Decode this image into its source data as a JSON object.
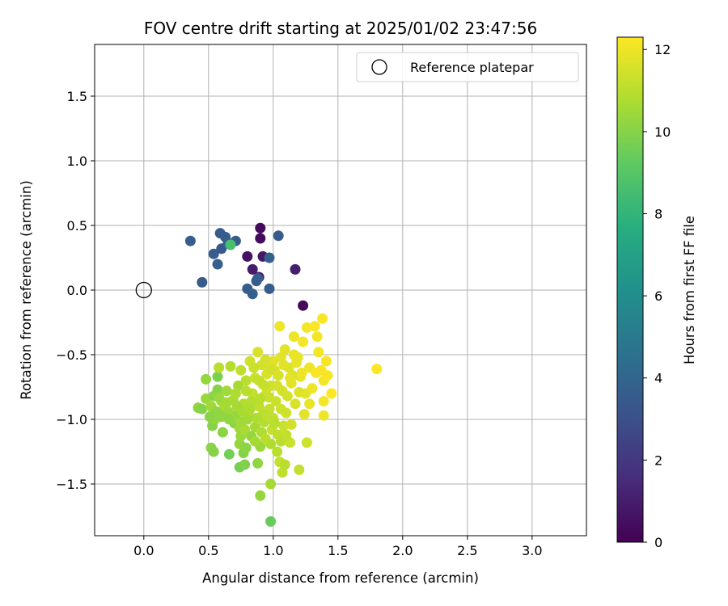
{
  "chart_data": {
    "type": "scatter",
    "title": "FOV centre drift starting at 2025/01/02 23:47:56",
    "xlabel": "Angular distance from reference (arcmin)",
    "ylabel": "Rotation from reference (arcmin)",
    "xlim": [
      -0.38,
      3.42
    ],
    "ylim": [
      -1.9,
      1.9
    ],
    "xticks": [
      0.0,
      0.5,
      1.0,
      1.5,
      2.0,
      2.5,
      3.0
    ],
    "xtick_labels": [
      "0.0",
      "0.5",
      "1.0",
      "1.5",
      "2.0",
      "2.5",
      "3.0"
    ],
    "yticks": [
      -1.5,
      -1.0,
      -0.5,
      0.0,
      0.5,
      1.0,
      1.5
    ],
    "ytick_labels": [
      "−1.5",
      "−1.0",
      "−0.5",
      "0.0",
      "0.5",
      "1.0",
      "1.5"
    ],
    "grid": true,
    "legend": {
      "placement": "upper-right",
      "entries": [
        "Reference platepar"
      ]
    },
    "reference_point": {
      "x": 0.0,
      "y": 0.0
    },
    "colorbar": {
      "label": "Hours from first FF file",
      "colormap": "viridis",
      "range": [
        0,
        12.3
      ],
      "ticks": [
        0,
        2,
        4,
        6,
        8,
        10,
        12
      ],
      "tick_labels": [
        "0",
        "2",
        "4",
        "6",
        "8",
        "10",
        "12"
      ]
    },
    "points": [
      [
        0.9,
        0.48,
        0.3
      ],
      [
        0.9,
        0.4,
        0.4
      ],
      [
        0.8,
        0.26,
        0.6
      ],
      [
        0.92,
        0.26,
        0.8
      ],
      [
        0.84,
        0.16,
        0.9
      ],
      [
        0.89,
        0.1,
        1.0
      ],
      [
        1.17,
        0.16,
        1.1
      ],
      [
        1.23,
        -0.12,
        0.2
      ],
      [
        0.36,
        0.38,
        3.6
      ],
      [
        0.45,
        0.06,
        3.5
      ],
      [
        0.54,
        0.28,
        3.6
      ],
      [
        0.57,
        0.2,
        3.7
      ],
      [
        0.59,
        0.44,
        3.5
      ],
      [
        0.63,
        0.41,
        3.6
      ],
      [
        0.6,
        0.32,
        3.4
      ],
      [
        0.66,
        0.36,
        3.8
      ],
      [
        0.71,
        0.38,
        3.5
      ],
      [
        0.65,
        0.36,
        3.9
      ],
      [
        0.87,
        0.07,
        3.6
      ],
      [
        0.88,
        0.09,
        3.7
      ],
      [
        0.97,
        0.25,
        3.8
      ],
      [
        1.04,
        0.42,
        3.6
      ],
      [
        0.8,
        0.01,
        3.6
      ],
      [
        0.84,
        -0.03,
        3.7
      ],
      [
        0.97,
        0.01,
        3.6
      ],
      [
        0.67,
        0.35,
        8.6
      ],
      [
        0.98,
        -1.79,
        9.4
      ],
      [
        0.9,
        -1.59,
        10.3
      ],
      [
        0.98,
        -1.5,
        10.6
      ],
      [
        0.66,
        -1.27,
        9.6
      ],
      [
        0.74,
        -1.37,
        9.7
      ],
      [
        0.78,
        -1.35,
        9.9
      ],
      [
        0.77,
        -1.26,
        10.0
      ],
      [
        0.88,
        -1.34,
        10.2
      ],
      [
        0.52,
        -1.22,
        10.1
      ],
      [
        0.54,
        -1.25,
        10.0
      ],
      [
        0.74,
        -1.19,
        10.3
      ],
      [
        0.79,
        -1.22,
        10.1
      ],
      [
        0.9,
        -1.21,
        10.4
      ],
      [
        0.98,
        -1.19,
        10.8
      ],
      [
        1.03,
        -1.25,
        11.0
      ],
      [
        1.07,
        -1.41,
        11.1
      ],
      [
        1.05,
        -1.33,
        11.2
      ],
      [
        1.09,
        -1.35,
        11.0
      ],
      [
        1.2,
        -1.39,
        11.2
      ],
      [
        1.06,
        -1.17,
        11.0
      ],
      [
        1.13,
        -1.18,
        11.3
      ],
      [
        1.26,
        -1.18,
        11.4
      ],
      [
        0.53,
        -1.05,
        10.0
      ],
      [
        0.55,
        -1.0,
        10.3
      ],
      [
        0.61,
        -1.1,
        10.1
      ],
      [
        0.7,
        -1.03,
        10.0
      ],
      [
        0.74,
        -1.07,
        10.5
      ],
      [
        0.75,
        -1.13,
        10.4
      ],
      [
        0.78,
        -1.08,
        10.7
      ],
      [
        0.83,
        -1.13,
        10.3
      ],
      [
        0.86,
        -1.06,
        10.6
      ],
      [
        0.91,
        -1.1,
        10.8
      ],
      [
        0.94,
        -1.15,
        11.0
      ],
      [
        0.99,
        -1.08,
        11.2
      ],
      [
        1.04,
        -1.12,
        11.1
      ],
      [
        1.08,
        -1.05,
        11.3
      ],
      [
        1.14,
        -1.04,
        11.5
      ],
      [
        0.42,
        -0.91,
        10.2
      ],
      [
        0.45,
        -0.92,
        10.0
      ],
      [
        0.48,
        -0.84,
        10.4
      ],
      [
        0.48,
        -0.69,
        10.3
      ],
      [
        0.52,
        -0.9,
        10.5
      ],
      [
        0.54,
        -0.82,
        10.1
      ],
      [
        0.57,
        -0.67,
        9.8
      ],
      [
        0.57,
        -0.77,
        10.0
      ],
      [
        0.58,
        -0.6,
        11.0
      ],
      [
        0.6,
        -0.86,
        10.6
      ],
      [
        0.62,
        -0.92,
        10.8
      ],
      [
        0.64,
        -0.78,
        10.5
      ],
      [
        0.67,
        -0.59,
        10.9
      ],
      [
        0.69,
        -0.85,
        10.7
      ],
      [
        0.71,
        -0.97,
        10.3
      ],
      [
        0.73,
        -0.74,
        10.6
      ],
      [
        0.75,
        -0.62,
        11.1
      ],
      [
        0.77,
        -0.88,
        10.9
      ],
      [
        0.79,
        -0.7,
        11.0
      ],
      [
        0.81,
        -0.95,
        11.1
      ],
      [
        0.82,
        -0.55,
        11.4
      ],
      [
        0.84,
        -0.8,
        11.2
      ],
      [
        0.86,
        -0.68,
        11.3
      ],
      [
        0.88,
        -0.48,
        11.6
      ],
      [
        0.89,
        -0.9,
        11.1
      ],
      [
        0.91,
        -0.58,
        11.5
      ],
      [
        0.93,
        -0.82,
        11.3
      ],
      [
        0.95,
        -0.65,
        11.6
      ],
      [
        0.97,
        -0.92,
        11.2
      ],
      [
        0.98,
        -0.74,
        11.4
      ],
      [
        1.0,
        -0.55,
        11.7
      ],
      [
        1.02,
        -0.86,
        11.3
      ],
      [
        1.04,
        -0.66,
        11.6
      ],
      [
        1.05,
        -0.28,
        12.0
      ],
      [
        1.07,
        -0.78,
        11.5
      ],
      [
        1.09,
        -0.46,
        11.8
      ],
      [
        1.1,
        -0.95,
        11.4
      ],
      [
        1.12,
        -0.6,
        11.7
      ],
      [
        1.14,
        -0.72,
        11.8
      ],
      [
        1.16,
        -0.36,
        12.0
      ],
      [
        1.17,
        -0.88,
        11.6
      ],
      [
        1.19,
        -0.52,
        11.9
      ],
      [
        1.21,
        -0.67,
        11.9
      ],
      [
        1.23,
        -0.4,
        12.1
      ],
      [
        1.25,
        -0.8,
        11.8
      ],
      [
        1.26,
        -0.29,
        12.1
      ],
      [
        1.28,
        -0.6,
        12.0
      ],
      [
        1.3,
        -0.76,
        12.0
      ],
      [
        1.32,
        -0.28,
        12.2
      ],
      [
        1.34,
        -0.36,
        12.1
      ],
      [
        1.35,
        -0.48,
        12.1
      ],
      [
        1.37,
        -0.62,
        12.2
      ],
      [
        1.38,
        -0.22,
        12.2
      ],
      [
        1.39,
        -0.7,
        12.1
      ],
      [
        1.41,
        -0.55,
        12.2
      ],
      [
        1.42,
        -0.66,
        12.2
      ],
      [
        1.45,
        -0.8,
        12.3
      ],
      [
        1.39,
        -0.86,
        12.1
      ],
      [
        1.39,
        -0.97,
        12.0
      ],
      [
        1.8,
        -0.61,
        12.3
      ],
      [
        1.28,
        -0.88,
        11.9
      ],
      [
        1.2,
        -0.79,
        11.7
      ],
      [
        1.15,
        -0.66,
        11.6
      ],
      [
        1.11,
        -0.82,
        11.5
      ],
      [
        1.06,
        -0.92,
        11.4
      ],
      [
        1.0,
        -0.99,
        11.2
      ],
      [
        0.95,
        -0.76,
        11.4
      ],
      [
        0.92,
        -0.96,
        11.0
      ],
      [
        0.87,
        -0.99,
        10.8
      ],
      [
        0.83,
        -0.86,
        10.9
      ],
      [
        0.8,
        -1.0,
        10.6
      ],
      [
        0.76,
        -0.94,
        10.7
      ],
      [
        0.72,
        -0.9,
        10.6
      ],
      [
        0.68,
        -1.0,
        10.4
      ],
      [
        0.65,
        -0.94,
        10.5
      ],
      [
        0.6,
        -0.98,
        10.2
      ],
      [
        0.56,
        -0.94,
        10.2
      ],
      [
        0.51,
        -0.98,
        10.1
      ],
      [
        0.89,
        -0.7,
        11.2
      ],
      [
        0.94,
        -0.54,
        11.5
      ],
      [
        1.01,
        -0.62,
        11.6
      ],
      [
        1.08,
        -0.58,
        11.8
      ],
      [
        1.13,
        -0.68,
        11.8
      ],
      [
        1.18,
        -0.56,
        11.9
      ],
      [
        1.22,
        -0.64,
        12.0
      ],
      [
        1.03,
        -0.74,
        11.5
      ],
      [
        0.97,
        -0.83,
        11.3
      ],
      [
        1.24,
        -0.96,
        11.8
      ],
      [
        0.86,
        -1.17,
        10.6
      ],
      [
        0.93,
        -1.02,
        10.9
      ],
      [
        1.01,
        -1.03,
        11.0
      ],
      [
        1.1,
        -1.12,
        11.2
      ],
      [
        0.66,
        -1.0,
        10.2
      ],
      [
        0.71,
        -0.8,
        10.8
      ],
      [
        0.79,
        -0.78,
        11.0
      ],
      [
        0.85,
        -0.6,
        11.3
      ],
      [
        0.92,
        -0.73,
        11.2
      ],
      [
        0.98,
        -0.61,
        11.5
      ],
      [
        1.06,
        -0.52,
        11.8
      ],
      [
        1.16,
        -0.5,
        11.9
      ],
      [
        1.33,
        -0.64,
        12.2
      ],
      [
        0.58,
        -0.83,
        10.4
      ],
      [
        0.64,
        -0.87,
        10.6
      ],
      [
        0.75,
        -1.02,
        10.5
      ],
      [
        0.82,
        -0.92,
        10.8
      ],
      [
        0.9,
        -0.84,
        11.0
      ],
      [
        0.96,
        -0.98,
        11.1
      ]
    ]
  }
}
